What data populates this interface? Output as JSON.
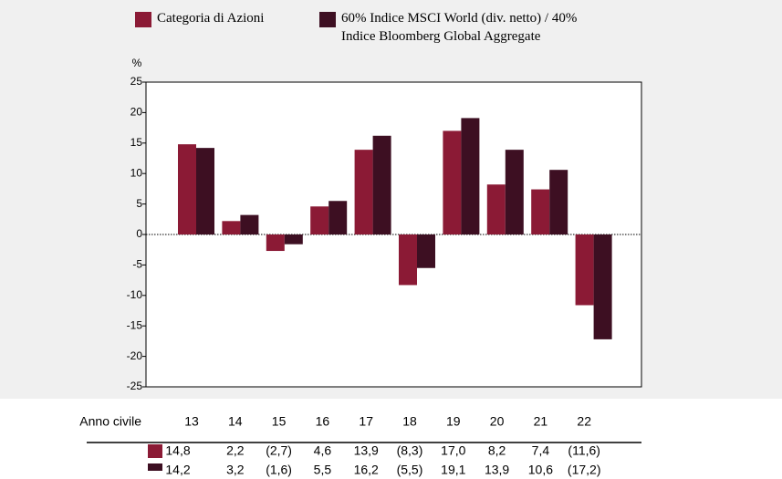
{
  "chart_data": {
    "type": "bar",
    "ylabel": "%",
    "categories_label": "Anno civile",
    "categories": [
      "13",
      "14",
      "15",
      "16",
      "17",
      "18",
      "19",
      "20",
      "21",
      "22"
    ],
    "series": [
      {
        "name": "Categoria di Azioni",
        "color": "#8b1a35",
        "values": [
          14.8,
          2.2,
          -2.7,
          4.6,
          13.9,
          -8.3,
          17.0,
          8.2,
          7.4,
          -11.6
        ],
        "value_labels": [
          "14,8",
          "2,2",
          "(2,7)",
          "4,6",
          "13,9",
          "(8,3)",
          "17,0",
          "8,2",
          "7,4",
          "(11,6)"
        ]
      },
      {
        "name": "60% Indice MSCI World (div. netto) / 40% Indice Bloomberg Global Aggregate",
        "color": "#3d0f22",
        "values": [
          14.2,
          3.2,
          -1.6,
          5.5,
          16.2,
          -5.5,
          19.1,
          13.9,
          10.6,
          -17.2
        ],
        "value_labels": [
          "14,2",
          "3,2",
          "(1,6)",
          "5,5",
          "16,2",
          "(5,5)",
          "19,1",
          "13,9",
          "10,6",
          "(17,2)"
        ]
      }
    ],
    "ylim": [
      -25,
      25
    ],
    "yticks": [
      25,
      20,
      15,
      10,
      5,
      0,
      -5,
      -10,
      -15,
      -20,
      -25
    ],
    "grid": false
  }
}
